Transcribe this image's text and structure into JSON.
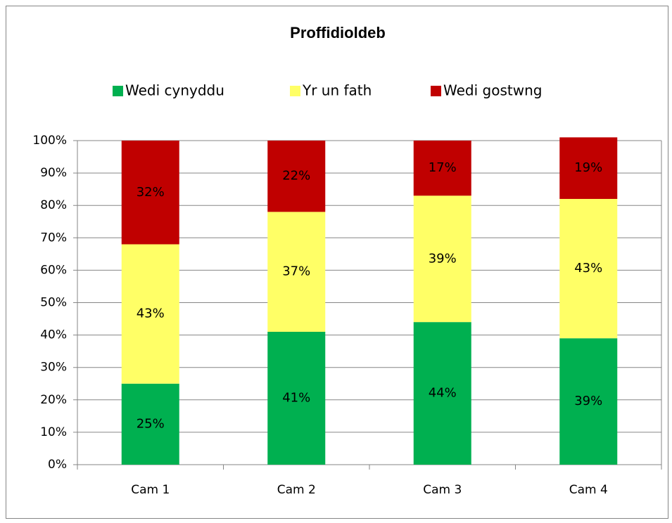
{
  "chart_data": {
    "type": "bar",
    "stacked": true,
    "title": "Proffidioldeb",
    "categories": [
      "Cam 1",
      "Cam 2",
      "Cam 3",
      "Cam 4"
    ],
    "series": [
      {
        "name": "Wedi cynyddu",
        "color": "#00b050",
        "values": [
          25,
          41,
          44,
          39
        ],
        "value_labels": [
          "25%",
          "41%",
          "44%",
          "39%"
        ]
      },
      {
        "name": "Yr un fath",
        "color": "#ffff66",
        "values": [
          43,
          37,
          39,
          43
        ],
        "value_labels": [
          "43%",
          "37%",
          "39%",
          "43%"
        ]
      },
      {
        "name": "Wedi gostwng",
        "color": "#c00000",
        "values": [
          32,
          22,
          17,
          19
        ],
        "value_labels": [
          "32%",
          "22%",
          "17%",
          "19%"
        ]
      }
    ],
    "ylim": [
      0,
      100
    ],
    "yticks": [
      {
        "value": 0,
        "label": "0%"
      },
      {
        "value": 10,
        "label": "10%"
      },
      {
        "value": 20,
        "label": "20%"
      },
      {
        "value": 30,
        "label": "30%"
      },
      {
        "value": 40,
        "label": "40%"
      },
      {
        "value": 50,
        "label": "50%"
      },
      {
        "value": 60,
        "label": "60%"
      },
      {
        "value": 70,
        "label": "70%"
      },
      {
        "value": 80,
        "label": "80%"
      },
      {
        "value": 90,
        "label": "90%"
      },
      {
        "value": 100,
        "label": "100%"
      }
    ],
    "grid": true,
    "legend": "top"
  }
}
